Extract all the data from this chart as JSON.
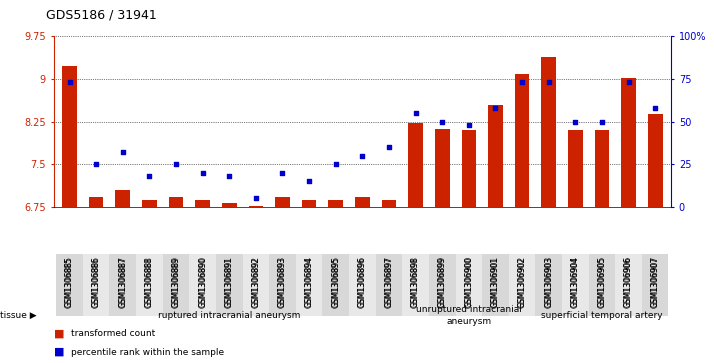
{
  "title": "GDS5186 / 31941",
  "samples": [
    "GSM1306885",
    "GSM1306886",
    "GSM1306887",
    "GSM1306888",
    "GSM1306889",
    "GSM1306890",
    "GSM1306891",
    "GSM1306892",
    "GSM1306893",
    "GSM1306894",
    "GSM1306895",
    "GSM1306896",
    "GSM1306897",
    "GSM1306898",
    "GSM1306899",
    "GSM1306900",
    "GSM1306901",
    "GSM1306902",
    "GSM1306903",
    "GSM1306904",
    "GSM1306905",
    "GSM1306906",
    "GSM1306907"
  ],
  "bar_values": [
    9.22,
    6.92,
    7.05,
    6.87,
    6.92,
    6.87,
    6.82,
    6.77,
    6.92,
    6.87,
    6.87,
    6.92,
    6.87,
    8.22,
    8.12,
    8.1,
    8.55,
    9.08,
    9.38,
    8.1,
    8.1,
    9.02,
    8.38
  ],
  "percentile_values": [
    73,
    25,
    32,
    18,
    25,
    20,
    18,
    5,
    20,
    15,
    25,
    30,
    35,
    55,
    50,
    48,
    58,
    73,
    73,
    50,
    50,
    73,
    58
  ],
  "ylim_left": [
    6.75,
    9.75
  ],
  "ylim_right": [
    0,
    100
  ],
  "yticks_left": [
    6.75,
    7.5,
    8.25,
    9.0,
    9.75
  ],
  "ytick_labels_left": [
    "6.75",
    "7.5",
    "8.25",
    "9",
    "9.75"
  ],
  "yticks_right": [
    0,
    25,
    50,
    75,
    100
  ],
  "ytick_labels_right": [
    "0",
    "25",
    "50",
    "75",
    "100%"
  ],
  "bar_color": "#cc2200",
  "scatter_color": "#0000cc",
  "group_labels": [
    "ruptured intracranial aneurysm",
    "unruptured intracranial\naneurysm",
    "superficial temporal artery"
  ],
  "group_ranges": [
    [
      0,
      13
    ],
    [
      13,
      18
    ],
    [
      18,
      23
    ]
  ],
  "group_colors": [
    "#c8e8c8",
    "#ddf0dd",
    "#66cc66"
  ],
  "tissue_label": "tissue",
  "legend_bar_label": "transformed count",
  "legend_scatter_label": "percentile rank within the sample"
}
